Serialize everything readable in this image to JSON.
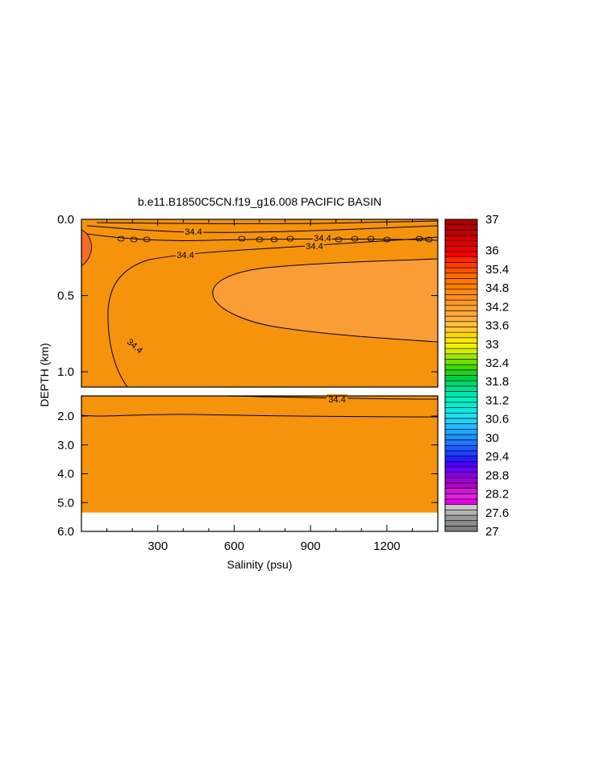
{
  "chart_data": {
    "type": "heatmap",
    "title": "b.e11.B1850C5CN.f19_g16.008 PACIFIC BASIN",
    "xlabel": "Salinity (psu)",
    "ylabel": "DEPTH (km)",
    "xlim": [
      0,
      1400
    ],
    "x_ticks": [
      "300",
      "600",
      "900",
      "1200"
    ],
    "x_tick_values": [
      300,
      600,
      900,
      1200
    ],
    "upper_panel": {
      "ylim": [
        0,
        1.1
      ],
      "y_ticks": [
        "0.0",
        "0.5",
        "1.0"
      ],
      "y_tick_values": [
        0.0,
        0.5,
        1.0
      ]
    },
    "lower_panel": {
      "ylim": [
        1.3,
        6.0
      ],
      "y_ticks": [
        "2.0",
        "3.0",
        "4.0",
        "5.0",
        "6.0"
      ],
      "y_tick_values": [
        2.0,
        3.0,
        4.0,
        5.0,
        6.0
      ],
      "data_bottom_depth": 5.35
    },
    "contour_labels": [
      "34.4",
      "34.4",
      "34.4",
      "34.4",
      "34.4",
      "34.4"
    ],
    "colorbar": {
      "labels": [
        "37",
        "36",
        "35.4",
        "34.8",
        "34.2",
        "33.6",
        "33",
        "32.4",
        "31.8",
        "31.2",
        "30.6",
        "30",
        "29.4",
        "28.8",
        "28.2",
        "27.6",
        "27"
      ],
      "label_values": [
        37,
        36,
        35.4,
        34.8,
        34.2,
        33.6,
        33,
        32.4,
        31.8,
        31.2,
        30.6,
        30,
        29.4,
        28.8,
        28.2,
        27.6,
        27
      ],
      "min": 27,
      "max": 37,
      "step": 0.2,
      "colors": [
        "#7f7f7f",
        "#8c8c8c",
        "#9a9a9a",
        "#b4b4b4",
        "#c8c8c8",
        "#e600e6",
        "#e41ee4",
        "#cc1acc",
        "#b400c8",
        "#9f00d4",
        "#8a00e0",
        "#6a00ff",
        "#4b00ff",
        "#2020ff",
        "#1e3cff",
        "#1e5aff",
        "#1e78ff",
        "#1e90ff",
        "#20a6ff",
        "#24bcff",
        "#22d0f8",
        "#20e0f0",
        "#10e8e0",
        "#00f0d0",
        "#00f0c0",
        "#00e8b0",
        "#00e090",
        "#00d870",
        "#00d040",
        "#20d020",
        "#40d800",
        "#70e000",
        "#a0e800",
        "#d0f000",
        "#f0f000",
        "#ffe800",
        "#ffd800",
        "#ffc830",
        "#ffbe40",
        "#ffb040",
        "#ffa83c",
        "#ffa030",
        "#ff9828",
        "#ff9020",
        "#ff8a14",
        "#ff8000",
        "#ff7800",
        "#ff6a00",
        "#ff5000",
        "#ff3c00",
        "#ff2800",
        "#ff0000",
        "#f00000",
        "#e00000",
        "#d00000",
        "#c00000",
        "#b40000",
        "#aa0000"
      ]
    }
  }
}
